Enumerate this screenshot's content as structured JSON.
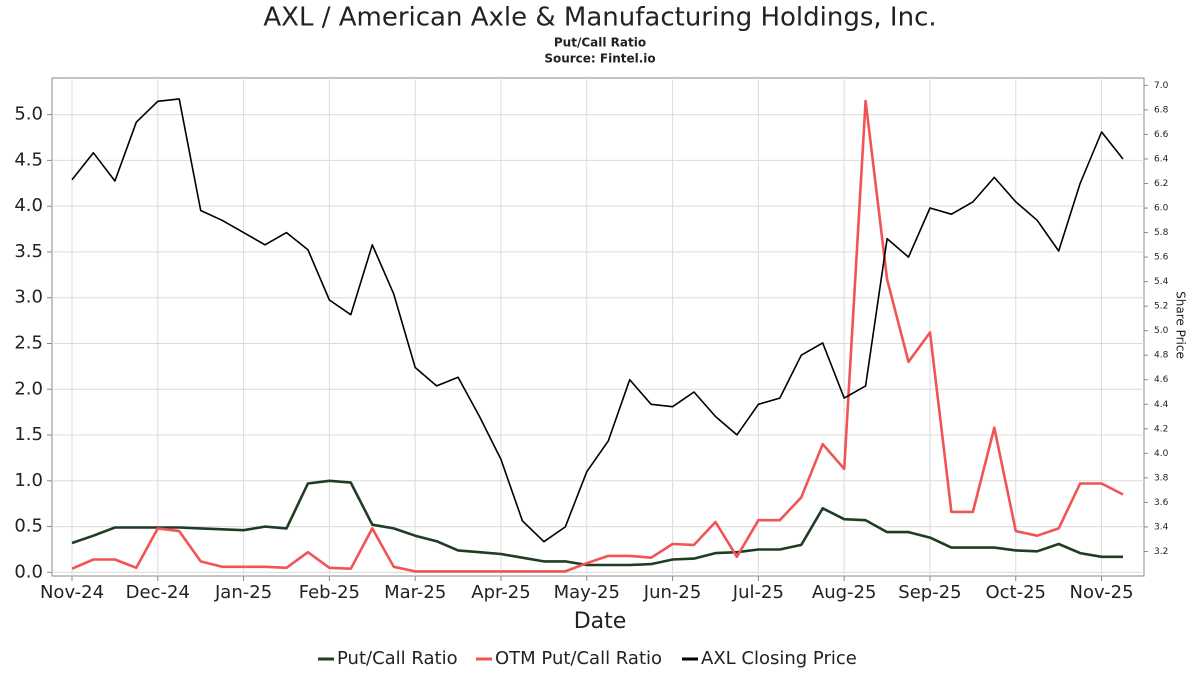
{
  "chart_data": {
    "type": "line",
    "title": "AXL / American Axle & Manufacturing Holdings, Inc.",
    "subtitle": "Put/Call Ratio",
    "source": "Source: Fintel.io",
    "xlabel": "Date",
    "y2label": "Share Price",
    "categories": [
      "Nov-24",
      null,
      null,
      null,
      "Dec-24",
      null,
      null,
      null,
      "Jan-25",
      null,
      null,
      null,
      "Feb-25",
      null,
      null,
      null,
      "Mar-25",
      null,
      null,
      null,
      "Apr-25",
      null,
      null,
      null,
      "May-25",
      null,
      null,
      null,
      "Jun-25",
      null,
      null,
      null,
      "Jul-25",
      null,
      null,
      null,
      "Aug-25",
      null,
      null,
      null,
      "Sep-25",
      null,
      null,
      null,
      "Oct-25",
      null,
      null,
      null,
      "Nov-25",
      null
    ],
    "series": [
      {
        "name": "Put/Call Ratio",
        "color": "#1e3d24",
        "values": [
          0.32,
          0.4,
          0.49,
          0.49,
          0.49,
          0.49,
          0.48,
          0.47,
          0.46,
          0.5,
          0.48,
          0.97,
          1.0,
          0.98,
          0.52,
          0.48,
          0.4,
          0.34,
          0.24,
          0.22,
          0.2,
          0.16,
          0.12,
          0.12,
          0.08,
          0.08,
          0.08,
          0.09,
          0.14,
          0.15,
          0.21,
          0.22,
          0.25,
          0.25,
          0.3,
          0.7,
          0.58,
          0.57,
          0.44,
          0.44,
          0.38,
          0.27,
          0.27,
          0.27,
          0.24,
          0.23,
          0.31,
          0.21,
          0.17,
          0.17
        ]
      },
      {
        "name": "OTM Put/Call Ratio",
        "color": "#f05454",
        "values": [
          0.04,
          0.14,
          0.14,
          0.05,
          0.48,
          0.45,
          0.12,
          0.06,
          0.06,
          0.06,
          0.05,
          0.22,
          0.05,
          0.04,
          0.48,
          0.06,
          0.01,
          0.01,
          0.01,
          0.01,
          0.01,
          0.01,
          0.01,
          0.01,
          0.1,
          0.18,
          0.18,
          0.16,
          0.31,
          0.3,
          0.55,
          0.17,
          0.57,
          0.57,
          0.82,
          1.4,
          1.13,
          5.15,
          3.2,
          2.3,
          2.62,
          0.66,
          0.66,
          1.58,
          0.45,
          0.4,
          0.48,
          0.97,
          0.97,
          0.85
        ]
      },
      {
        "name": "AXL Closing Price",
        "color": "#000000",
        "axis": "y2",
        "values": [
          6.23,
          6.45,
          6.22,
          6.7,
          6.87,
          6.89,
          5.98,
          5.9,
          5.8,
          5.7,
          5.8,
          5.66,
          5.25,
          5.13,
          5.7,
          5.3,
          4.7,
          4.55,
          4.62,
          4.3,
          3.95,
          3.45,
          3.28,
          3.4,
          3.85,
          4.1,
          4.6,
          4.4,
          4.38,
          4.5,
          4.3,
          4.15,
          4.4,
          4.45,
          4.8,
          4.9,
          4.45,
          4.55,
          5.75,
          5.6,
          6.0,
          5.95,
          6.05,
          6.25,
          6.05,
          5.9,
          5.65,
          6.2,
          6.62,
          6.4
        ]
      }
    ],
    "ylim": [
      -0.04,
      5.4
    ],
    "yticks": [
      {
        "value": 0,
        "label": "0.0"
      },
      0.5,
      {
        "value": 1,
        "label": "1.0"
      },
      1.5,
      {
        "value": 2,
        "label": "2.0"
      },
      2.5,
      {
        "value": 3,
        "label": "3.0"
      },
      3.5,
      {
        "value": 4,
        "label": "4.0"
      },
      4.5,
      {
        "value": 5,
        "label": "5.0"
      }
    ],
    "y2lim": [
      3.0,
      7.06
    ],
    "y2ticks": [
      3.2,
      3.4,
      3.6,
      3.8,
      {
        "value": 4,
        "label": "4.0"
      },
      4.2,
      4.4,
      4.6,
      4.8,
      {
        "value": 5,
        "label": "5.0"
      },
      5.2,
      5.4,
      5.6,
      5.8,
      {
        "value": 6,
        "label": "6.0"
      },
      6.2,
      6.4,
      6.6,
      6.8,
      {
        "value": 7,
        "label": "7.0"
      }
    ],
    "grid": true,
    "legend": "bottom"
  }
}
